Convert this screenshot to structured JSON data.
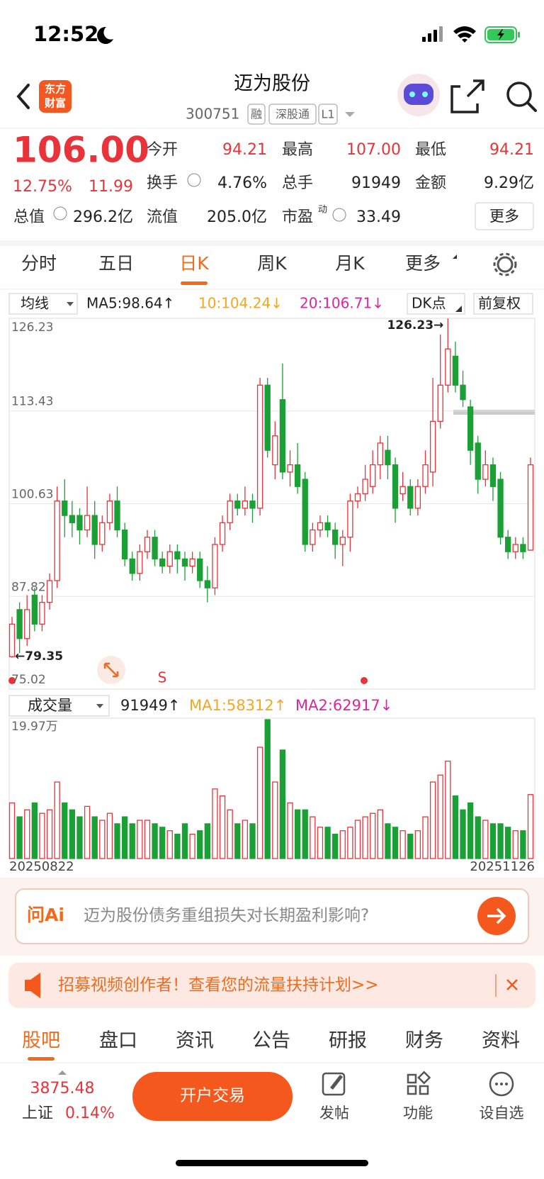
{
  "status": {
    "time": "12:52"
  },
  "header": {
    "logo": [
      "东方",
      "财富"
    ],
    "title": "迈为股份",
    "code": "300751",
    "tags": [
      "融",
      "深股通",
      "L1"
    ]
  },
  "quote": {
    "price": "106.00",
    "change_pct": "12.75%",
    "change": "11.99",
    "fields": [
      {
        "label": "今开",
        "value": "94.21"
      },
      {
        "label": "最高",
        "value": "107.00"
      },
      {
        "label": "最低",
        "value": "94.21"
      },
      {
        "label": "换手",
        "value": "4.76%"
      },
      {
        "label": "总手",
        "value": "91949"
      },
      {
        "label": "金额",
        "value": "9.29亿"
      },
      {
        "label": "总值",
        "value": "296.2亿"
      },
      {
        "label": "流值",
        "value": "205.0亿"
      },
      {
        "label": "市盈",
        "value": "33.49"
      }
    ],
    "pe_sup": "动",
    "more": "更多"
  },
  "tabs": {
    "items": [
      "分时",
      "五日",
      "日K",
      "周K",
      "月K",
      "更多"
    ],
    "active": 2
  },
  "indicators": {
    "select": "均线",
    "ma5": "MA5:98.64↑",
    "ma10": "10:104.24↓",
    "ma20": "20:106.71↓",
    "dk": "DK点",
    "adjust": "前复权"
  },
  "chart_data": {
    "type": "candlestick",
    "ylim": [
      75.02,
      126.23
    ],
    "yticks": [
      75.02,
      87.82,
      100.63,
      113.43,
      126.23
    ],
    "high_label": "126.23→",
    "low_label": "←79.35",
    "signal": "S",
    "open": [
      79.5,
      86,
      82,
      88,
      84,
      87,
      90,
      101,
      99,
      99,
      97,
      99,
      95,
      98,
      101,
      97,
      93,
      91,
      94,
      96,
      93,
      92,
      94,
      93,
      92,
      93,
      90,
      89,
      95,
      98,
      101,
      100,
      101,
      100,
      117,
      106,
      115,
      105,
      106,
      104,
      95,
      97,
      98,
      97,
      95,
      96,
      101,
      102,
      103,
      106,
      108,
      106,
      102,
      103,
      100,
      103,
      105,
      112,
      117,
      121,
      117,
      114,
      109,
      104,
      106,
      104,
      96,
      94,
      95,
      94.21
    ],
    "close": [
      84,
      82,
      86,
      84,
      87,
      90,
      101,
      99,
      98,
      97,
      99,
      95,
      98,
      101,
      97,
      93,
      91,
      94,
      96,
      93,
      92,
      94,
      93,
      92,
      93,
      90,
      89,
      95,
      98,
      101,
      100,
      101,
      100,
      117,
      108,
      110,
      105,
      106,
      103,
      95,
      97,
      98,
      97,
      95,
      96,
      101,
      102,
      104,
      106,
      109,
      106,
      100,
      103,
      100,
      103,
      106,
      112,
      117,
      122,
      117,
      115,
      108,
      104,
      106,
      103,
      96,
      94,
      95,
      94,
      106
    ],
    "high": [
      85,
      87,
      88,
      89,
      88,
      91,
      103,
      104,
      101,
      100,
      103,
      101,
      99,
      102,
      103,
      98,
      94,
      95,
      97,
      97,
      94,
      95,
      95,
      94,
      94,
      94,
      92,
      96,
      99,
      102,
      102,
      103,
      102,
      118,
      118,
      112,
      120,
      108,
      109,
      105,
      98,
      99,
      99,
      98,
      97,
      102,
      103,
      106,
      108,
      110,
      110,
      107,
      105,
      104,
      104,
      108,
      118,
      124,
      126.23,
      123,
      119,
      115,
      110,
      108,
      107,
      105,
      97,
      96,
      96,
      107
    ],
    "low": [
      79.35,
      80,
      81,
      83,
      83,
      86,
      89,
      96,
      96,
      95,
      96,
      93,
      94,
      97,
      96,
      92,
      90,
      90,
      93,
      92,
      91,
      91,
      91,
      90,
      91,
      89,
      87,
      88,
      94,
      97,
      99,
      99,
      98,
      99,
      107,
      104,
      104,
      103,
      102,
      94,
      94,
      96,
      96,
      93,
      92,
      94,
      100,
      101,
      102,
      104,
      104,
      98,
      101,
      99,
      99,
      102,
      103,
      111,
      116,
      116,
      114,
      106,
      102,
      103,
      101,
      95,
      93,
      93,
      93,
      94.21
    ],
    "volume": {
      "values": [
        8,
        6,
        7,
        8,
        6.5,
        7,
        11,
        8,
        7,
        6,
        7.5,
        6,
        5.5,
        6.5,
        5,
        6,
        5,
        5.5,
        5.5,
        5,
        4.5,
        4,
        3.5,
        5,
        3.5,
        4,
        5,
        10,
        9,
        7,
        5,
        5.5,
        5,
        16,
        19.97,
        11,
        15.6,
        8,
        7,
        7,
        6,
        4.5,
        4.5,
        3.5,
        4,
        4.5,
        5.5,
        6,
        6.5,
        7,
        5,
        4.5,
        4,
        3.5,
        4,
        6,
        11,
        12,
        14,
        9,
        7,
        8,
        6,
        5.5,
        5,
        5,
        4.5,
        4,
        4,
        9.1949
      ],
      "ylim": [
        0,
        19.97
      ],
      "top_label": "19.97万"
    },
    "volume_header": {
      "select": "成交量",
      "now": "91949↑",
      "ma1": "MA1:58312↑",
      "ma2": "MA2:62917↓"
    },
    "start_date": "20250822",
    "end_date": "20251126"
  },
  "ask_ai": {
    "logo": "问Ai",
    "question": "迈为股份债务重组损失对长期盈利影响?"
  },
  "banner": {
    "text": "招募视频创作者！查看您的流量扶持计划>>"
  },
  "sub_tabs": {
    "items": [
      "股吧",
      "盘口",
      "资讯",
      "公告",
      "研报",
      "财务",
      "资料"
    ],
    "active": 0
  },
  "bottom_bar": {
    "index_value": "3875.48",
    "index_name": "上证",
    "index_change": "0.14%",
    "trade": "开户交易",
    "actions": [
      "发帖",
      "功能",
      "设自选"
    ]
  }
}
